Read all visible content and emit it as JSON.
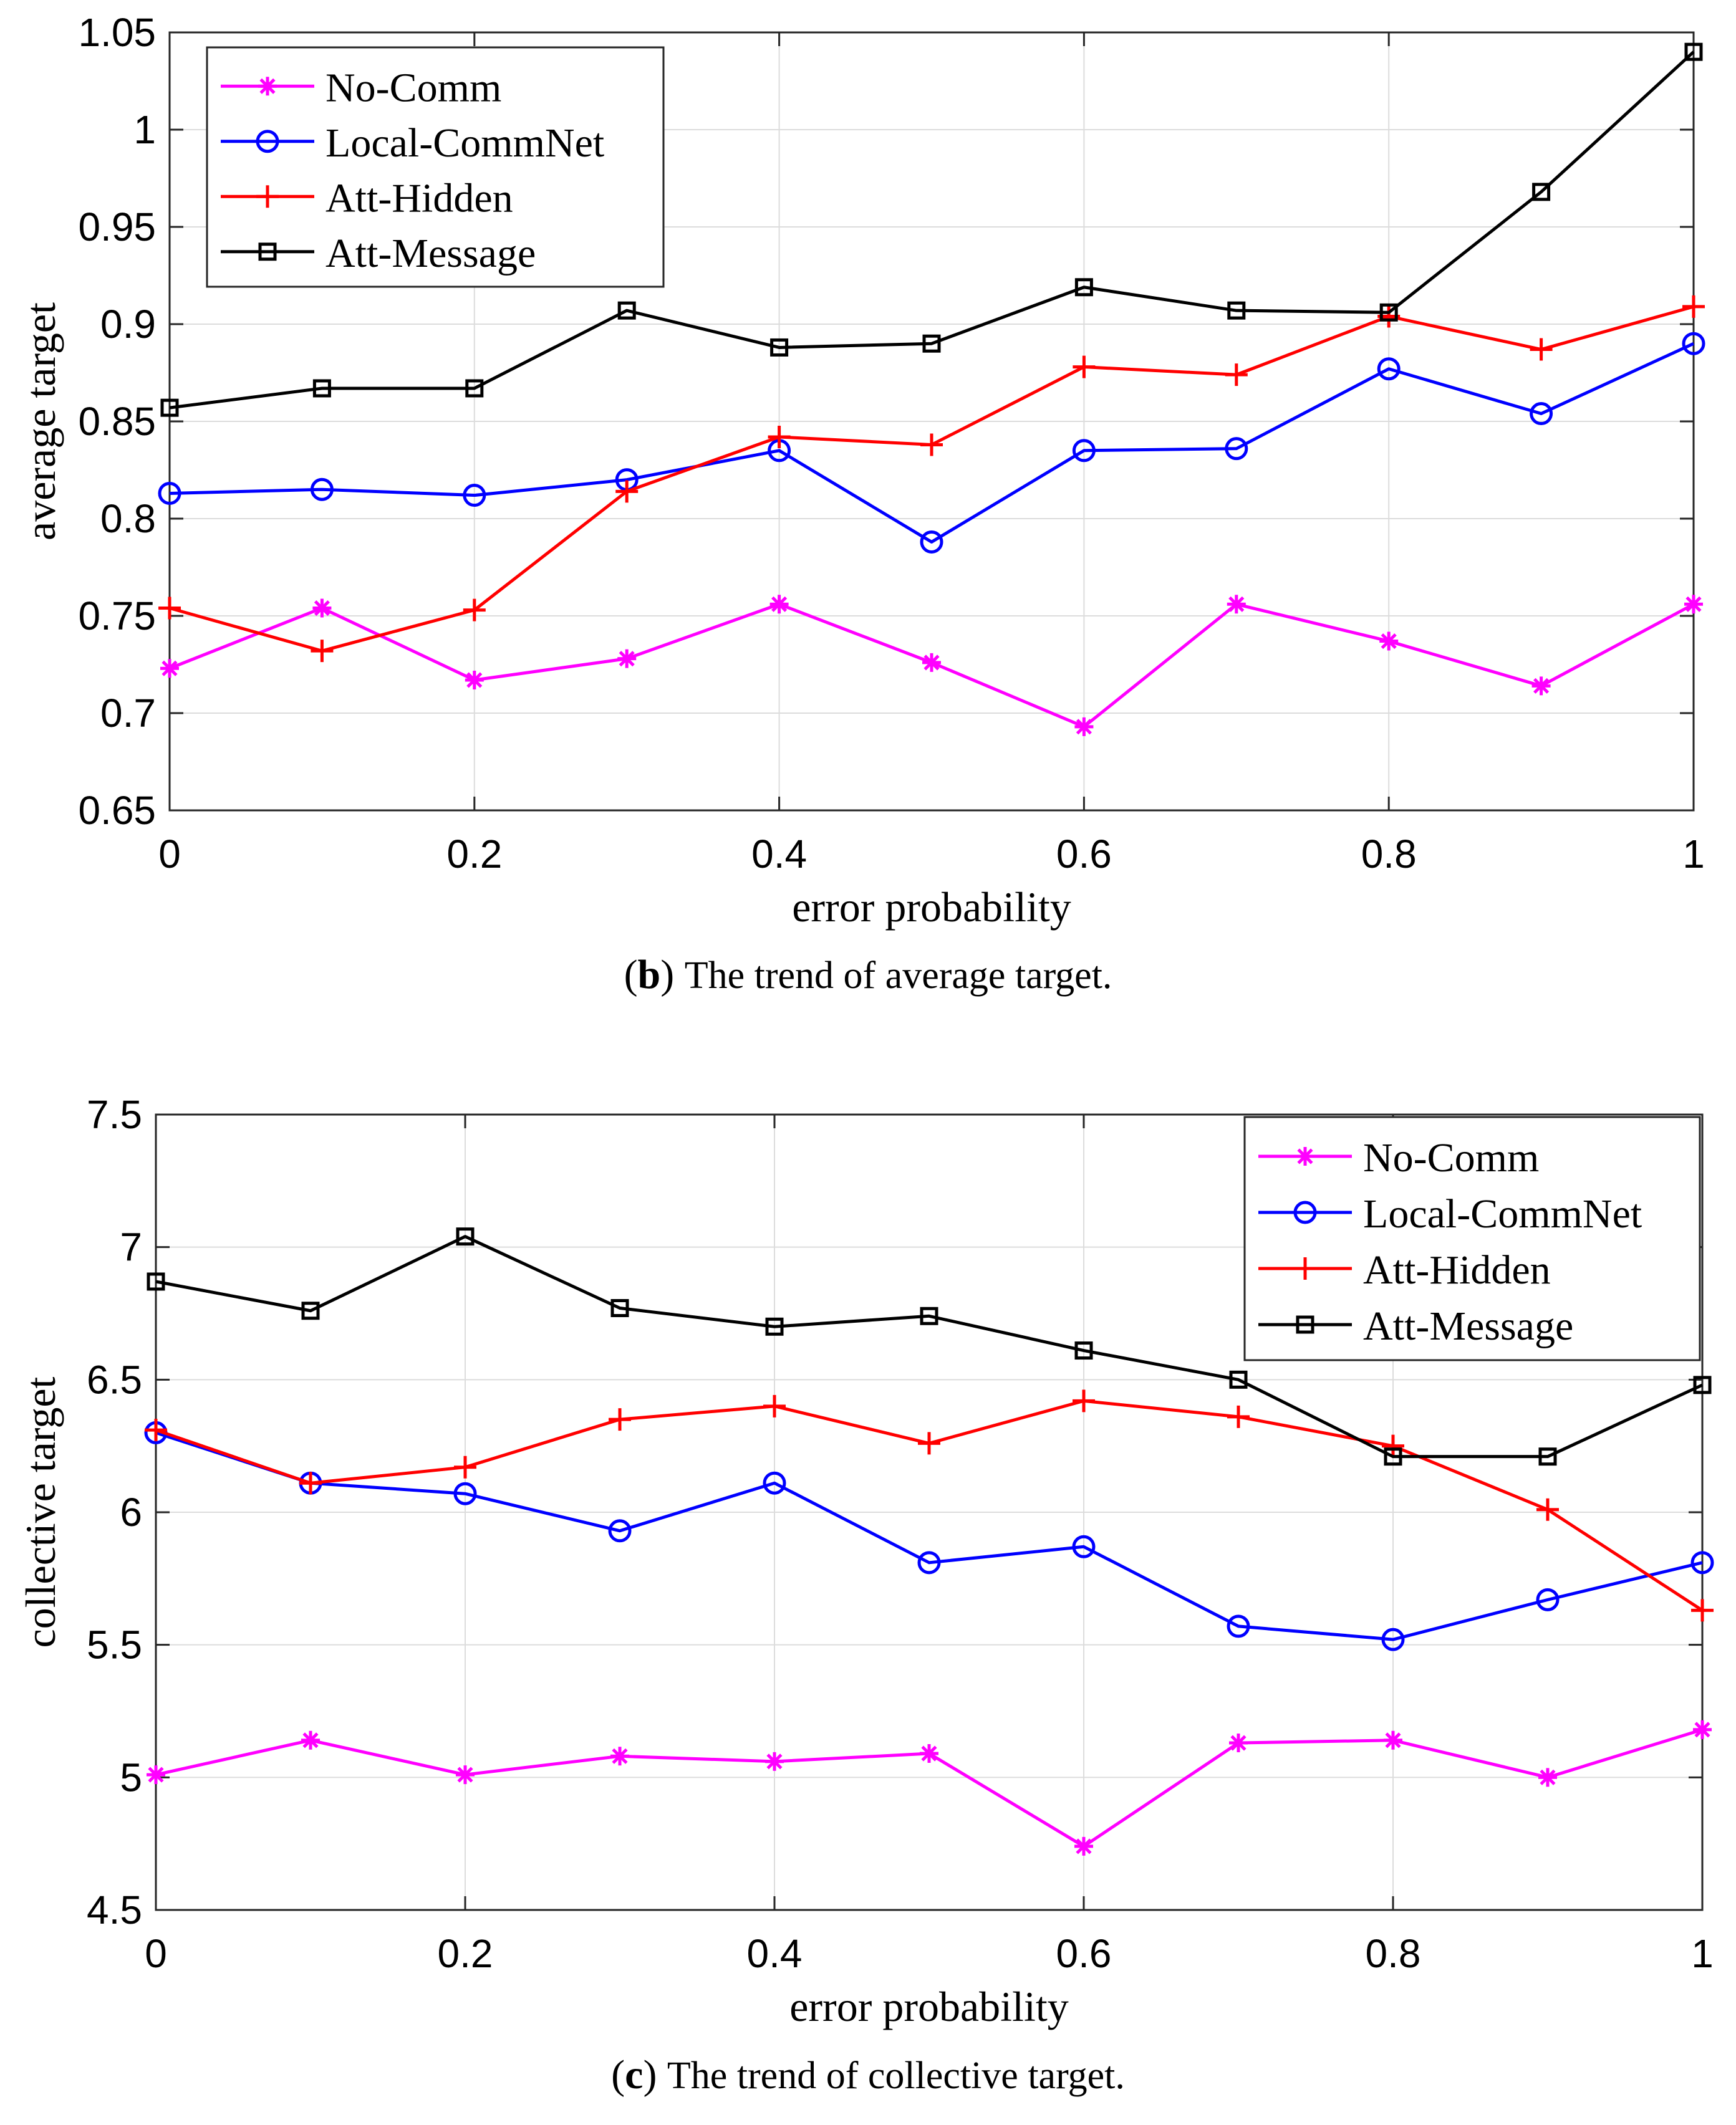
{
  "chart_data": [
    {
      "type": "line",
      "caption_letter": "b",
      "caption_text": "The trend of average target.",
      "xlabel": "error probability",
      "ylabel": "average target",
      "xlim": [
        0,
        1
      ],
      "ylim": [
        0.65,
        1.05
      ],
      "xticks": [
        0,
        0.2,
        0.4,
        0.6,
        0.8,
        1
      ],
      "xtick_labels": [
        "0",
        "0.2",
        "0.4",
        "0.6",
        "0.8",
        "1"
      ],
      "yticks": [
        0.65,
        0.7,
        0.75,
        0.8,
        0.85,
        0.9,
        0.95,
        1,
        1.05
      ],
      "ytick_labels": [
        "0.65",
        "0.7",
        "0.75",
        "0.8",
        "0.85",
        "0.9",
        "0.95",
        "1",
        "1.05"
      ],
      "grid": true,
      "legend_position": "top-left",
      "x": [
        0,
        0.1,
        0.2,
        0.3,
        0.4,
        0.5,
        0.6,
        0.7,
        0.8,
        0.9,
        1
      ],
      "series": [
        {
          "name": "No-Comm",
          "marker": "asterisk",
          "color": "#ff00ff",
          "values": [
            0.723,
            0.754,
            0.717,
            0.728,
            0.756,
            0.726,
            0.693,
            0.756,
            0.737,
            0.714,
            0.756
          ]
        },
        {
          "name": "Local-CommNet",
          "marker": "circle",
          "color": "#0000ff",
          "values": [
            0.813,
            0.815,
            0.812,
            0.82,
            0.835,
            0.788,
            0.835,
            0.836,
            0.877,
            0.854,
            0.89
          ]
        },
        {
          "name": "Att-Hidden",
          "marker": "plus",
          "color": "#ff0000",
          "values": [
            0.754,
            0.732,
            0.753,
            0.814,
            0.842,
            0.838,
            0.878,
            0.874,
            0.904,
            0.887,
            0.909
          ]
        },
        {
          "name": "Att-Message",
          "marker": "square",
          "color": "#000000",
          "values": [
            0.857,
            0.867,
            0.867,
            0.907,
            0.888,
            0.89,
            0.919,
            0.907,
            0.906,
            0.968,
            1.04
          ]
        }
      ]
    },
    {
      "type": "line",
      "caption_letter": "c",
      "caption_text": "The trend of collective target.",
      "xlabel": "error probability",
      "ylabel": "collective target",
      "xlim": [
        0,
        1
      ],
      "ylim": [
        4.5,
        7.5
      ],
      "xticks": [
        0,
        0.2,
        0.4,
        0.6,
        0.8,
        1
      ],
      "xtick_labels": [
        "0",
        "0.2",
        "0.4",
        "0.6",
        "0.8",
        "1"
      ],
      "yticks": [
        4.5,
        5,
        5.5,
        6,
        6.5,
        7,
        7.5
      ],
      "ytick_labels": [
        "4.5",
        "5",
        "5.5",
        "6",
        "6.5",
        "7",
        "7.5"
      ],
      "grid": true,
      "legend_position": "top-right",
      "x": [
        0,
        0.1,
        0.2,
        0.3,
        0.4,
        0.5,
        0.6,
        0.7,
        0.8,
        0.9,
        1
      ],
      "series": [
        {
          "name": "No-Comm",
          "marker": "asterisk",
          "color": "#ff00ff",
          "values": [
            5.01,
            5.14,
            5.01,
            5.08,
            5.06,
            5.09,
            4.74,
            5.13,
            5.14,
            5.0,
            5.18
          ]
        },
        {
          "name": "Local-CommNet",
          "marker": "circle",
          "color": "#0000ff",
          "values": [
            6.3,
            6.11,
            6.07,
            5.93,
            6.11,
            5.81,
            5.87,
            5.57,
            5.52,
            5.67,
            5.81
          ]
        },
        {
          "name": "Att-Hidden",
          "marker": "plus",
          "color": "#ff0000",
          "values": [
            6.31,
            6.11,
            6.17,
            6.35,
            6.4,
            6.26,
            6.42,
            6.36,
            6.25,
            6.01,
            5.63
          ]
        },
        {
          "name": "Att-Message",
          "marker": "square",
          "color": "#000000",
          "values": [
            6.87,
            6.76,
            7.04,
            6.77,
            6.7,
            6.74,
            6.61,
            6.5,
            6.21,
            6.21,
            6.48
          ]
        }
      ]
    }
  ]
}
